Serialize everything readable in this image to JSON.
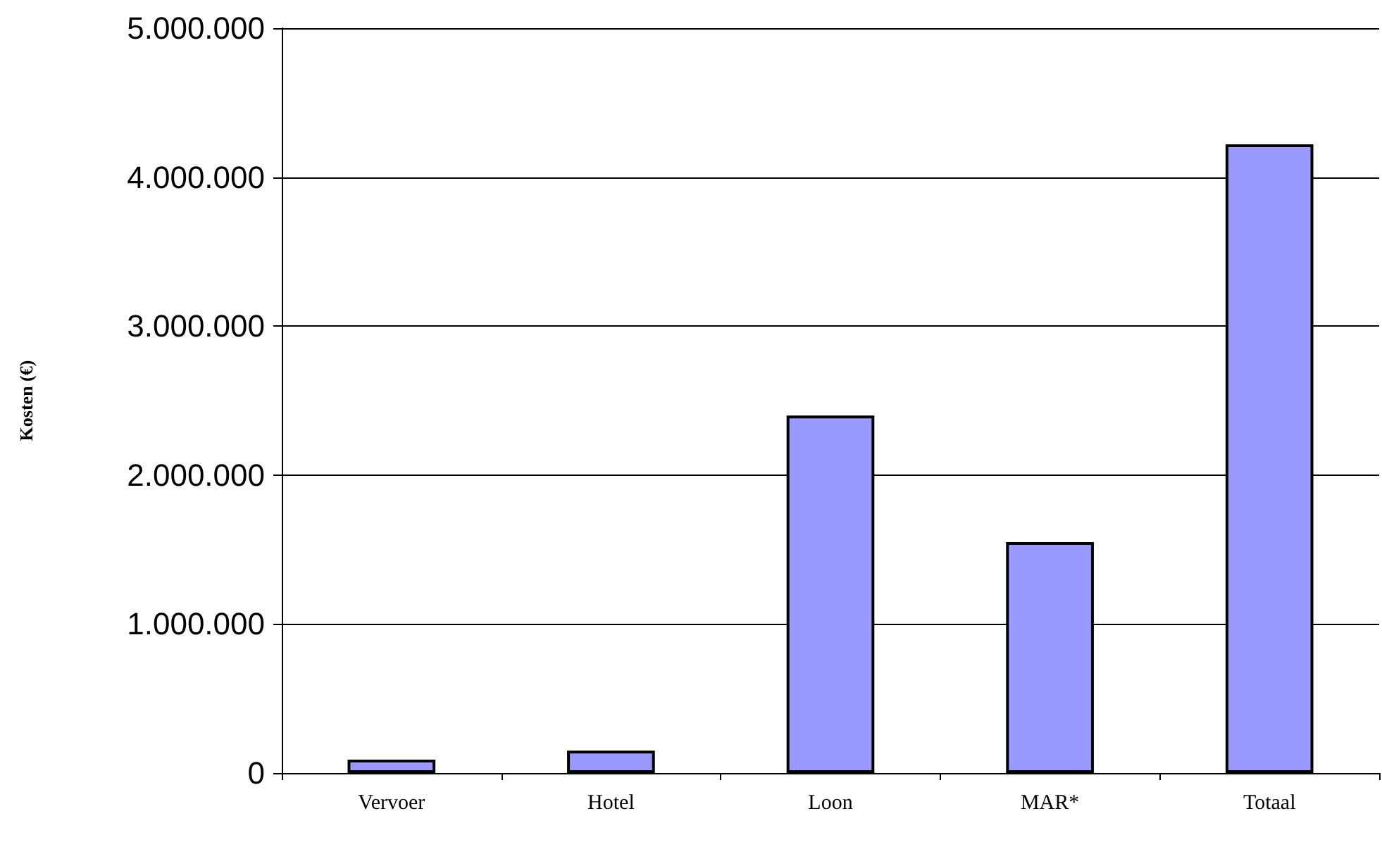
{
  "chart_data": {
    "type": "bar",
    "ylabel": "Kosten (€)",
    "categories": [
      "Vervoer",
      "Hotel",
      "Loon",
      "MAR*",
      "Totaal"
    ],
    "values": [
      90000,
      150000,
      2400000,
      1550000,
      4220000
    ],
    "color": "#9999ff",
    "ylim": [
      0,
      5000000
    ],
    "yticks": [
      0,
      {
        "value": 1000000,
        "label": "1.000.000"
      },
      {
        "value": 2000000,
        "label": "2.000.000"
      },
      {
        "value": 3000000,
        "label": "3.000.000"
      },
      {
        "value": 4000000,
        "label": "4.000.000"
      },
      {
        "value": 5000000,
        "label": "5.000.000"
      }
    ],
    "grid": "y"
  }
}
